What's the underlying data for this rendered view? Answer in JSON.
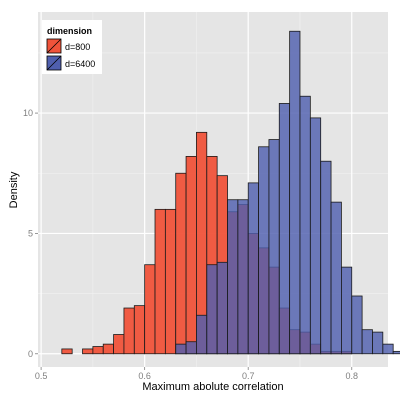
{
  "chart_data": {
    "type": "bar",
    "title": "",
    "xlabel": "Maximum abolute correlation",
    "ylabel": "Density",
    "xlim": [
      0.497,
      0.835
    ],
    "ylim": [
      -0.55,
      14.2
    ],
    "xticks": [
      0.5,
      0.6,
      0.7,
      0.8
    ],
    "xtick_labels": [
      "0.5",
      "0.6",
      "0.7",
      "0.8"
    ],
    "yticks": [
      0,
      5,
      10
    ],
    "ytick_labels": [
      "0",
      "5",
      "10"
    ],
    "grid": true,
    "legend": {
      "title": "dimension",
      "placement": "top-left",
      "entries": [
        "d=800",
        "d=6400"
      ]
    },
    "bin_width": 0.01,
    "series": [
      {
        "name": "d=800",
        "color": "#f0533a",
        "bins": [
          [
            0.51,
            0.0
          ],
          [
            0.52,
            0.2
          ],
          [
            0.53,
            0.0
          ],
          [
            0.54,
            0.2
          ],
          [
            0.55,
            0.3
          ],
          [
            0.56,
            0.4
          ],
          [
            0.57,
            0.8
          ],
          [
            0.58,
            1.9
          ],
          [
            0.59,
            2.0
          ],
          [
            0.6,
            3.7
          ],
          [
            0.61,
            6.0
          ],
          [
            0.62,
            6.0
          ],
          [
            0.63,
            7.5
          ],
          [
            0.64,
            8.2
          ],
          [
            0.65,
            9.2
          ],
          [
            0.66,
            8.2
          ],
          [
            0.67,
            7.4
          ],
          [
            0.68,
            5.9
          ],
          [
            0.69,
            6.2
          ],
          [
            0.7,
            5.0
          ],
          [
            0.71,
            4.4
          ],
          [
            0.72,
            3.6
          ],
          [
            0.73,
            1.9
          ],
          [
            0.74,
            1.0
          ],
          [
            0.75,
            0.9
          ],
          [
            0.76,
            0.4
          ],
          [
            0.77,
            0.1
          ],
          [
            0.78,
            0.1
          ],
          [
            0.79,
            0.1
          ],
          [
            0.8,
            0.0
          ]
        ]
      },
      {
        "name": "d=6400",
        "color": "#4f5fae",
        "bins": [
          [
            0.63,
            0.4
          ],
          [
            0.64,
            0.5
          ],
          [
            0.65,
            1.6
          ],
          [
            0.66,
            3.7
          ],
          [
            0.67,
            3.8
          ],
          [
            0.68,
            6.4
          ],
          [
            0.69,
            6.4
          ],
          [
            0.7,
            7.1
          ],
          [
            0.71,
            8.6
          ],
          [
            0.72,
            8.9
          ],
          [
            0.73,
            10.4
          ],
          [
            0.74,
            13.4
          ],
          [
            0.75,
            10.7
          ],
          [
            0.76,
            9.8
          ],
          [
            0.77,
            8.0
          ],
          [
            0.78,
            6.3
          ],
          [
            0.79,
            3.6
          ],
          [
            0.8,
            2.4
          ],
          [
            0.81,
            1.0
          ],
          [
            0.82,
            0.9
          ],
          [
            0.83,
            0.4
          ],
          [
            0.84,
            0.1
          ]
        ]
      }
    ]
  }
}
